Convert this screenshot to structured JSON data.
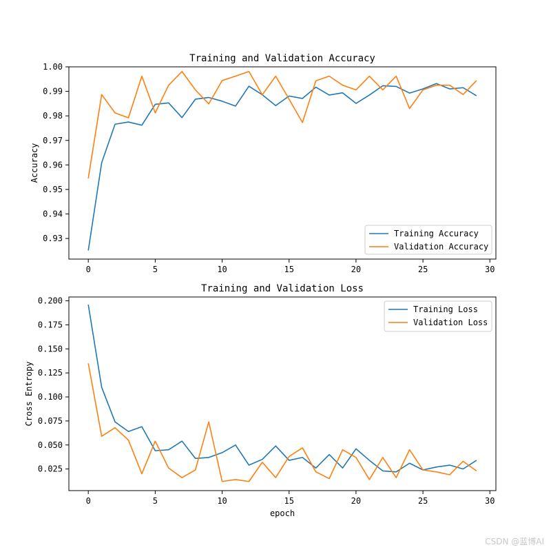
{
  "chart_data": [
    {
      "type": "line",
      "title": "Training and Validation Accuracy",
      "xlabel": "",
      "ylabel": "Accuracy",
      "xlim": [
        -1.45,
        30.45
      ],
      "ylim": [
        0.9216,
        1.0
      ],
      "xticks": [
        0,
        5,
        10,
        15,
        20,
        25,
        30
      ],
      "yticks": [
        0.93,
        0.94,
        0.95,
        0.96,
        0.97,
        0.98,
        0.99,
        1.0
      ],
      "ytick_labels": [
        "0.93",
        "0.94",
        "0.95",
        "0.96",
        "0.97",
        "0.98",
        "0.99",
        "1.00"
      ],
      "legend_position": "lower-right",
      "grid": false,
      "x": [
        0,
        1,
        2,
        3,
        4,
        5,
        6,
        7,
        8,
        9,
        10,
        11,
        12,
        13,
        14,
        15,
        16,
        17,
        18,
        19,
        20,
        21,
        22,
        23,
        24,
        25,
        26,
        27,
        28,
        29
      ],
      "series": [
        {
          "name": "Training Accuracy",
          "color": "#1f77b4",
          "values": [
            0.9251,
            0.9609,
            0.9766,
            0.9775,
            0.9762,
            0.9847,
            0.9853,
            0.9793,
            0.9868,
            0.9875,
            0.986,
            0.984,
            0.9921,
            0.9886,
            0.9842,
            0.9881,
            0.9871,
            0.9917,
            0.9885,
            0.9894,
            0.9851,
            0.9885,
            0.9923,
            0.992,
            0.9893,
            0.991,
            0.9932,
            0.991,
            0.9915,
            0.9882
          ]
        },
        {
          "name": "Validation Accuracy",
          "color": "#ff7f0e",
          "values": [
            0.9545,
            0.9887,
            0.9812,
            0.9792,
            0.9962,
            0.9812,
            0.9925,
            0.9981,
            0.9906,
            0.9849,
            0.9944,
            0.9962,
            0.9981,
            0.9886,
            0.9962,
            0.9868,
            0.9773,
            0.9943,
            0.9962,
            0.9925,
            0.9906,
            0.9962,
            0.9906,
            0.9962,
            0.983,
            0.9906,
            0.9925,
            0.9925,
            0.9887,
            0.9944
          ]
        }
      ]
    },
    {
      "type": "line",
      "title": "Training and Validation Loss",
      "xlabel": "epoch",
      "ylabel": "Cross Entropy",
      "xlim": [
        -1.45,
        30.45
      ],
      "ylim": [
        0.0025,
        0.204
      ],
      "xticks": [
        0,
        5,
        10,
        15,
        20,
        25,
        30
      ],
      "yticks": [
        0.025,
        0.05,
        0.075,
        0.1,
        0.125,
        0.15,
        0.175,
        0.2
      ],
      "ytick_labels": [
        "0.025",
        "0.050",
        "0.075",
        "0.100",
        "0.125",
        "0.150",
        "0.175",
        "0.200"
      ],
      "legend_position": "upper-right",
      "grid": false,
      "x": [
        0,
        1,
        2,
        3,
        4,
        5,
        6,
        7,
        8,
        9,
        10,
        11,
        12,
        13,
        14,
        15,
        16,
        17,
        18,
        19,
        20,
        21,
        22,
        23,
        24,
        25,
        26,
        27,
        28,
        29
      ],
      "series": [
        {
          "name": "Training Loss",
          "color": "#1f77b4",
          "values": [
            0.196,
            0.11,
            0.074,
            0.064,
            0.069,
            0.044,
            0.045,
            0.054,
            0.036,
            0.037,
            0.042,
            0.05,
            0.029,
            0.035,
            0.049,
            0.034,
            0.037,
            0.026,
            0.04,
            0.026,
            0.046,
            0.034,
            0.023,
            0.022,
            0.031,
            0.024,
            0.027,
            0.029,
            0.025,
            0.034
          ]
        },
        {
          "name": "Validation Loss",
          "color": "#ff7f0e",
          "values": [
            0.135,
            0.059,
            0.068,
            0.055,
            0.02,
            0.054,
            0.026,
            0.016,
            0.024,
            0.074,
            0.012,
            0.014,
            0.012,
            0.032,
            0.016,
            0.038,
            0.047,
            0.022,
            0.015,
            0.045,
            0.037,
            0.014,
            0.037,
            0.016,
            0.045,
            0.024,
            0.022,
            0.019,
            0.033,
            0.023
          ]
        }
      ]
    }
  ],
  "watermark": "CSDN @蓝博AI"
}
